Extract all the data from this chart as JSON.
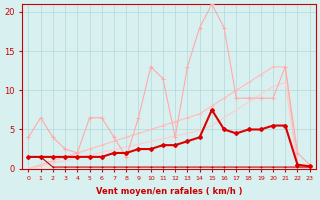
{
  "x": [
    0,
    1,
    2,
    3,
    4,
    5,
    6,
    7,
    8,
    9,
    10,
    11,
    12,
    13,
    14,
    15,
    16,
    17,
    18,
    19,
    20,
    21,
    22,
    23
  ],
  "series": {
    "line1_pink_volatile": [
      4,
      6.5,
      4,
      2.5,
      2,
      6.5,
      6.5,
      4,
      1.5,
      6.5,
      13,
      11.5,
      4,
      13,
      18,
      21,
      18,
      9,
      9,
      9,
      9,
      13,
      2,
      0.5
    ],
    "line2_pink_linear": [
      0,
      0.5,
      1,
      1.5,
      2,
      2.5,
      3,
      3.5,
      4,
      4.5,
      5,
      5.5,
      6,
      6.5,
      7,
      8,
      9,
      10,
      11,
      12,
      13,
      13,
      0.5,
      0.2
    ],
    "line3_pink_linear2": [
      0,
      0.3,
      0.7,
      1.0,
      1.4,
      1.7,
      2.1,
      2.4,
      2.8,
      3.1,
      3.5,
      3.8,
      4.2,
      4.5,
      4.9,
      5.5,
      6.5,
      7.5,
      8.5,
      9.5,
      10.5,
      11,
      0.3,
      0.1
    ],
    "line4_dark_red_bold": [
      1.5,
      1.5,
      1.5,
      1.5,
      1.5,
      1.5,
      1.5,
      2,
      2,
      2.5,
      2.5,
      3,
      3,
      3.5,
      4,
      7.5,
      5,
      4.5,
      5,
      5,
      5.5,
      5.5,
      0.5,
      0.3
    ],
    "line5_dark_red_flat": [
      1.5,
      1.5,
      0.2,
      0.2,
      0.2,
      0.2,
      0.2,
      0.2,
      0.2,
      0.2,
      0.2,
      0.2,
      0.2,
      0.2,
      0.2,
      0.2,
      0.2,
      0.2,
      0.2,
      0.2,
      0.2,
      0.2,
      0.2,
      0.2
    ]
  },
  "colors": {
    "line1_pink_volatile": "#ff9999",
    "line2_pink_linear": "#ffaaaa",
    "line3_pink_linear2": "#ffbbbb",
    "line4_dark_red_bold": "#cc0000",
    "line5_dark_red_flat": "#cc0000"
  },
  "bg_color": "#d8f0f0",
  "grid_color": "#b0d8d8",
  "axis_color": "#cc0000",
  "tick_color": "#cc0000",
  "xlabel": "Vent moyen/en rafales ( km/h )",
  "ylim": [
    0,
    21
  ],
  "yticks": [
    0,
    5,
    10,
    15,
    20
  ],
  "xlim": [
    -0.5,
    23.5
  ]
}
